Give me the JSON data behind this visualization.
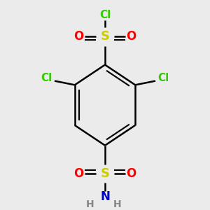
{
  "background_color": "#ebebeb",
  "atom_colors": {
    "S": "#cccc00",
    "O": "#ff0000",
    "Cl": "#33cc00",
    "N": "#0000cc",
    "H": "#888888"
  },
  "bond_color": "#000000",
  "bond_width": 1.8,
  "font_size_S": 13,
  "font_size_O": 12,
  "font_size_Cl": 11,
  "font_size_N": 12,
  "font_size_H": 10
}
